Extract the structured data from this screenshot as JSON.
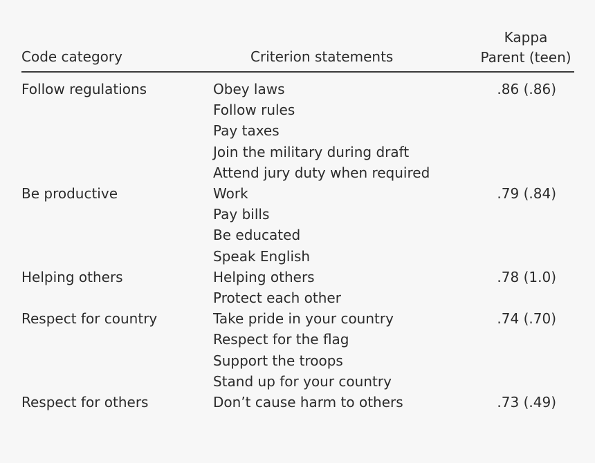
{
  "header": {
    "code_category": "Code category",
    "criterion_statements": "Criterion statements",
    "kappa_line1": "Kappa",
    "kappa_line2": "Parent (teen)"
  },
  "rows": [
    {
      "category": "Follow regulations",
      "statements": [
        "Obey laws",
        "Follow rules",
        "Pay taxes",
        "Join the military during draft",
        "Attend jury duty when required"
      ],
      "kappa": ".86 (.86)"
    },
    {
      "category": "Be productive",
      "statements": [
        "Work",
        "Pay bills",
        "Be educated",
        "Speak English"
      ],
      "kappa": ".79 (.84)"
    },
    {
      "category": "Helping others",
      "statements": [
        "Helping others",
        "Protect each other"
      ],
      "kappa": ".78 (1.0)"
    },
    {
      "category": "Respect for country",
      "statements": [
        "Take pride in your country",
        "Respect for the flag",
        "Support the troops",
        "Stand up for your country"
      ],
      "kappa": ".74 (.70)"
    },
    {
      "category": "Respect for others",
      "statements": [
        "Don’t cause harm to others"
      ],
      "kappa": ".73 (.49)"
    }
  ]
}
